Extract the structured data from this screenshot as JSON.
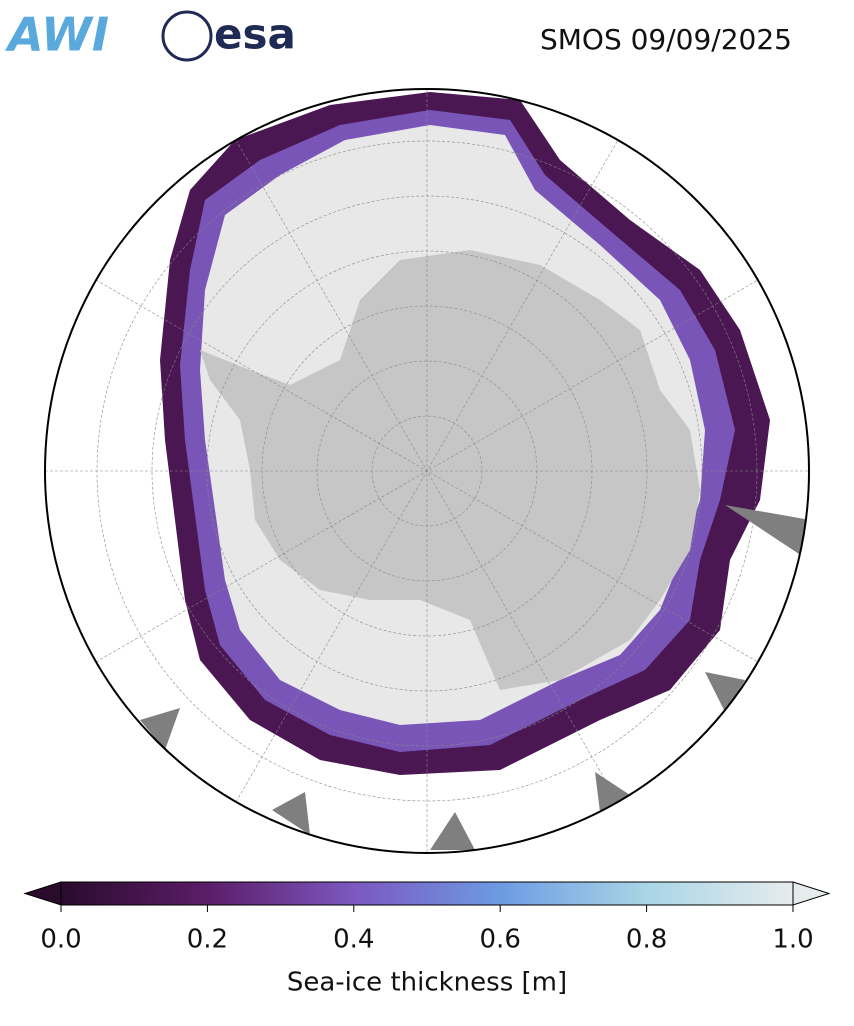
{
  "header": {
    "logos": [
      "AWI",
      "esa"
    ],
    "title": "SMOS 09/09/2025"
  },
  "colorbar": {
    "label": "Sea-ice thickness [m]",
    "range": [
      0,
      1
    ],
    "ticks": [
      {
        "value": 0,
        "label": "0.0"
      },
      {
        "value": 0.2,
        "label": "0.2"
      },
      {
        "value": 0.4,
        "label": "0.4"
      },
      {
        "value": 0.6,
        "label": "0.6"
      },
      {
        "value": 0.8,
        "label": "0.8"
      },
      {
        "value": 1,
        "label": "1.0"
      }
    ],
    "colormap": [
      "#2a0b2c",
      "#5b1d68",
      "#7c58bf",
      "#6d9be3",
      "#a9d5e6",
      "#e6ecec"
    ]
  }
}
